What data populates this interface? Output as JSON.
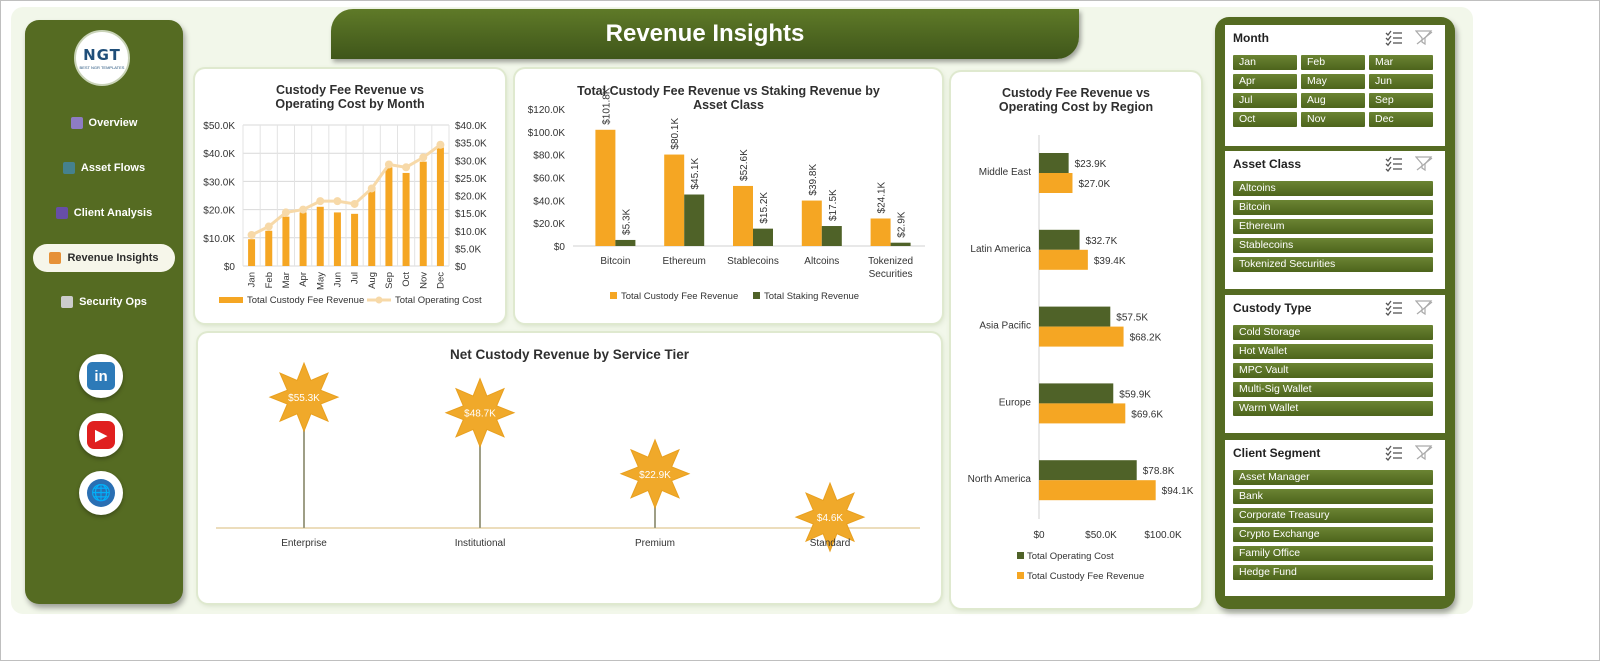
{
  "header": {
    "title": "Revenue Insights"
  },
  "logo": {
    "text": "NGT",
    "subtext": "BEST NGR TEMPLATES"
  },
  "sidebar": {
    "items": [
      {
        "label": "Overview",
        "icon": "bar-chart-icon",
        "color": "#8e7cc3",
        "active": false
      },
      {
        "label": "Asset Flows",
        "icon": "truck-icon",
        "color": "#45818e",
        "active": false
      },
      {
        "label": "Client Analysis",
        "icon": "people-icon",
        "color": "#674ea7",
        "active": false
      },
      {
        "label": "Revenue Insights",
        "icon": "money-bag-icon",
        "color": "#e69138",
        "active": true
      },
      {
        "label": "Security Ops",
        "icon": "gear-icon",
        "color": "#cccccc",
        "active": false
      }
    ],
    "social": [
      {
        "name": "linkedin",
        "label": "in",
        "color": "#2d7ab8"
      },
      {
        "name": "youtube",
        "label": "▶",
        "color": "#e01f1f"
      },
      {
        "name": "website",
        "label": "🌐",
        "color": "#2a6fb3"
      }
    ]
  },
  "colors": {
    "orange": "#f5a623",
    "green": "#4f6228",
    "cost_line": "#f7d9a8",
    "star": "#f0a92a"
  },
  "chart_data": [
    {
      "id": "month",
      "type": "bar",
      "title": "Custody Fee Revenue vs Operating Cost by Month",
      "categories": [
        "Jan",
        "Feb",
        "Mar",
        "Apr",
        "May",
        "Jun",
        "Jul",
        "Aug",
        "Sep",
        "Oct",
        "Nov",
        "Dec"
      ],
      "series": [
        {
          "name": "Total Custody Fee Revenue",
          "type": "bar",
          "axis": "left",
          "values": [
            9500,
            12500,
            17500,
            19000,
            21000,
            19000,
            18500,
            27000,
            35000,
            33000,
            37000,
            42000
          ]
        },
        {
          "name": "Total Operating Cost",
          "type": "line",
          "axis": "right",
          "values": [
            11000,
            14000,
            19000,
            20000,
            23000,
            23000,
            22000,
            27500,
            36000,
            35000,
            38500,
            43000
          ]
        }
      ],
      "ylim": [
        0,
        50000
      ],
      "y2lim": [
        0,
        40000
      ],
      "yticks": [
        "$0",
        "$10.0K",
        "$20.0K",
        "$30.0K",
        "$40.0K",
        "$50.0K"
      ],
      "y2ticks": [
        "$0",
        "$5.0K",
        "$10.0K",
        "$15.0K",
        "$20.0K",
        "$25.0K",
        "$30.0K",
        "$35.0K",
        "$40.0K"
      ],
      "grid": true,
      "legend": "bottom"
    },
    {
      "id": "asset",
      "type": "bar",
      "title": "Total Custody Fee Revenue vs Staking Revenue by Asset Class",
      "categories": [
        "Bitcoin",
        "Ethereum",
        "Stablecoins",
        "Altcoins",
        "Tokenized Securities"
      ],
      "series": [
        {
          "name": "Total Custody Fee Revenue",
          "values": [
            101800,
            80100,
            52600,
            39800,
            24100
          ],
          "labels": [
            "$101.8K",
            "$80.1K",
            "$52.6K",
            "$39.8K",
            "$24.1K"
          ]
        },
        {
          "name": "Total Staking Revenue",
          "values": [
            5300,
            45100,
            15200,
            17500,
            2900
          ],
          "labels": [
            "$5.3K",
            "$45.1K",
            "$15.2K",
            "$17.5K",
            "$2.9K"
          ]
        }
      ],
      "ylim": [
        0,
        120000
      ],
      "yticks": [
        "$0",
        "$20.0K",
        "$40.0K",
        "$60.0K",
        "$80.0K",
        "$100.0K",
        "$120.0K"
      ],
      "legend": "bottom"
    },
    {
      "id": "region",
      "type": "bar",
      "orientation": "horizontal",
      "title": "Custody Fee Revenue vs Operating Cost by Region",
      "categories": [
        "Middle East",
        "Latin America",
        "Asia Pacific",
        "Europe",
        "North America"
      ],
      "series": [
        {
          "name": "Total Operating Cost",
          "values": [
            23900,
            32700,
            57500,
            59900,
            78800
          ],
          "labels": [
            "$23.9K",
            "$32.7K",
            "$57.5K",
            "$59.9K",
            "$78.8K"
          ]
        },
        {
          "name": "Total Custody Fee Revenue",
          "values": [
            27000,
            39400,
            68200,
            69600,
            94100
          ],
          "labels": [
            "$27.0K",
            "$39.4K",
            "$68.2K",
            "$69.6K",
            "$94.1K"
          ]
        }
      ],
      "xlim": [
        0,
        100000
      ],
      "xticks": [
        "$0",
        "$50.0K",
        "$100.0K"
      ],
      "legend": "bottom"
    },
    {
      "id": "tier",
      "type": "lollipop",
      "title": "Net Custody Revenue by Service Tier",
      "categories": [
        "Enterprise",
        "Institutional",
        "Premium",
        "Standard"
      ],
      "values": [
        55300,
        48700,
        22900,
        4600
      ],
      "labels": [
        "$55.3K",
        "$48.7K",
        "$22.9K",
        "$4.6K"
      ],
      "ylim": [
        0,
        60000
      ]
    }
  ],
  "slicers": [
    {
      "title": "Month",
      "layout": "grid",
      "items": [
        "Jan",
        "Feb",
        "Mar",
        "Apr",
        "May",
        "Jun",
        "Jul",
        "Aug",
        "Sep",
        "Oct",
        "Nov",
        "Dec"
      ]
    },
    {
      "title": "Asset Class",
      "layout": "list",
      "items": [
        "Altcoins",
        "Bitcoin",
        "Ethereum",
        "Stablecoins",
        "Tokenized Securities"
      ]
    },
    {
      "title": "Custody Type",
      "layout": "list",
      "items": [
        "Cold Storage",
        "Hot Wallet",
        "MPC Vault",
        "Multi-Sig Wallet",
        "Warm Wallet"
      ]
    },
    {
      "title": "Client Segment",
      "layout": "list",
      "items": [
        "Asset Manager",
        "Bank",
        "Corporate Treasury",
        "Crypto Exchange",
        "Family Office",
        "Hedge Fund"
      ]
    }
  ]
}
